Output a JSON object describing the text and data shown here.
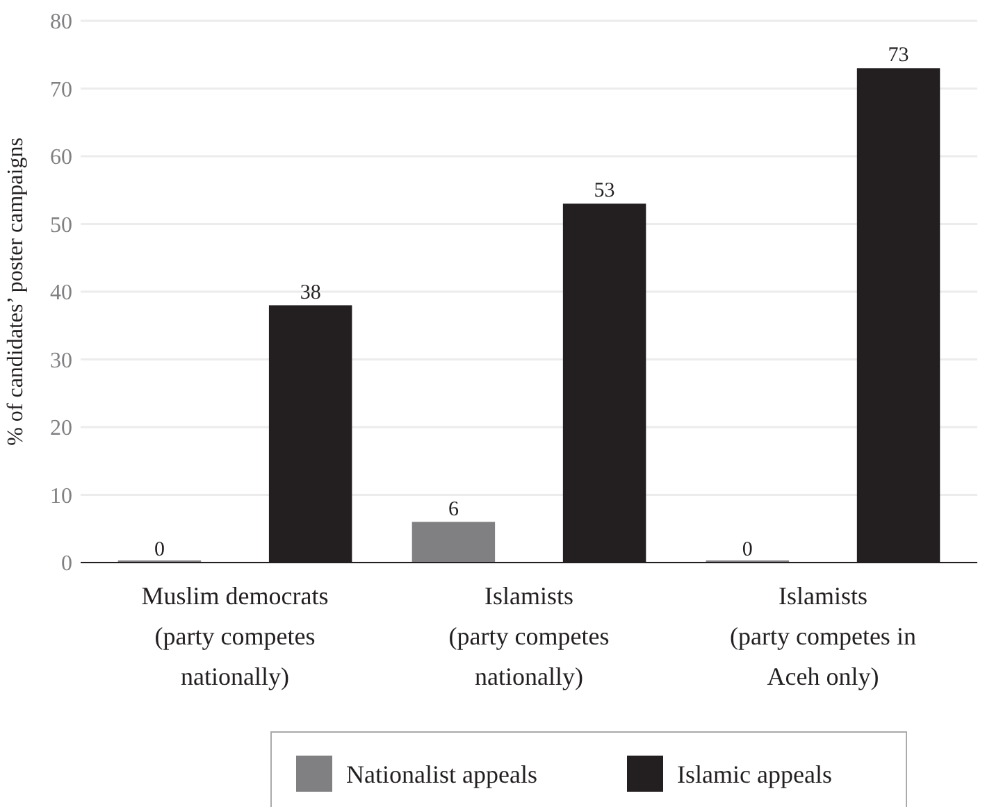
{
  "chart_data": {
    "type": "bar",
    "ylabel": "% of candidates’ poster campaigns",
    "categories": [
      "Muslim democrats\n(party competes\nnationally)",
      "Islamists\n(party competes\nnationally)",
      "Islamists\n(party competes in\nAceh only)"
    ],
    "series": [
      {
        "name": "Nationalist appeals",
        "color": "#808083",
        "values": [
          0,
          6,
          0
        ]
      },
      {
        "name": "Islamic appeals",
        "color": "#231f20",
        "values": [
          38,
          53,
          73
        ]
      }
    ],
    "ylim": [
      0,
      80
    ],
    "yticks": [
      0,
      10,
      20,
      30,
      40,
      50,
      60,
      70,
      80
    ],
    "grid": "y",
    "legend": "bottom",
    "data_labels": true
  }
}
